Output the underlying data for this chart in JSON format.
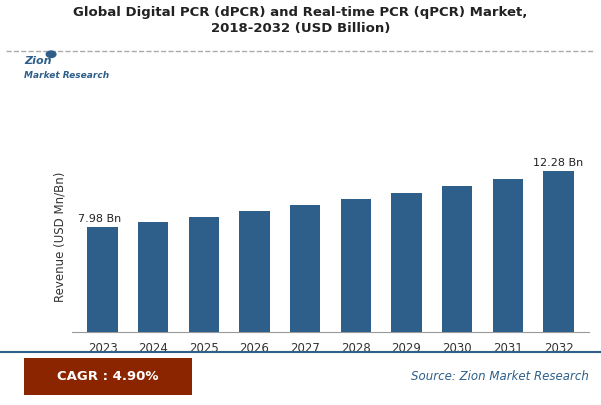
{
  "title_line1": "Global Digital PCR (dPCR) and Real-time PCR (qPCR) Market,",
  "title_line2": "2018-2032 (USD Billion)",
  "years": [
    2023,
    2024,
    2025,
    2026,
    2027,
    2028,
    2029,
    2030,
    2031,
    2032
  ],
  "values": [
    7.98,
    8.37,
    8.78,
    9.21,
    9.66,
    10.13,
    10.63,
    11.15,
    11.69,
    12.28
  ],
  "bar_color": "#2d5f8a",
  "ylabel": "Revenue (USD Mn/Bn)",
  "first_label": "7.98 Bn",
  "last_label": "12.28 Bn",
  "cagr_text": "CAGR : 4.90%",
  "source_text": "Source: Zion Market Research",
  "cagr_bg": "#8B2500",
  "cagr_text_color": "#ffffff",
  "source_text_color": "#2d5f8a",
  "background_color": "#ffffff",
  "title_color": "#222222",
  "dashed_line_color": "#aaaaaa",
  "ylim_min": 0,
  "ylim_max": 14.5
}
